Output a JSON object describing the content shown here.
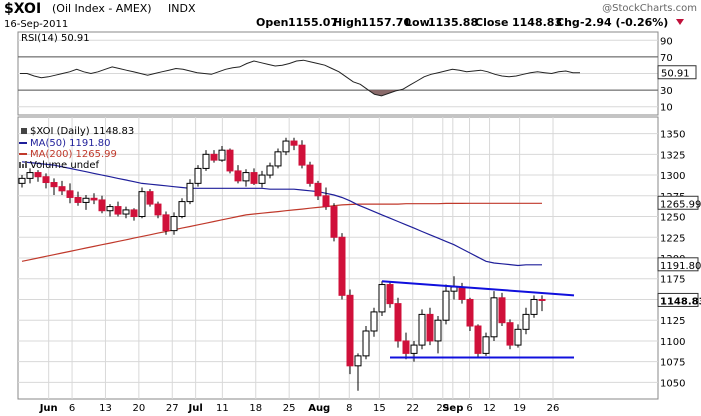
{
  "header": {
    "symbol": "$XOI",
    "name": "(Oil Index - AMEX)",
    "exchange": "INDX",
    "watermark": "@StockCharts.com",
    "date": "16-Sep-2011",
    "open_label": "Open",
    "open": "1155.07",
    "high_label": "High",
    "high": "1157.70",
    "low_label": "Low",
    "low": "1135.88",
    "close_label": "Close",
    "close": "1148.83",
    "chg_label": "Chg",
    "chg": "-2.94 (-0.26%)"
  },
  "colors": {
    "up": "#ffffff",
    "down": "#d0103a",
    "candle_outline": "#000000",
    "ma50": "#1f1f9a",
    "ma200": "#c0392b",
    "trendline": "#1010dd",
    "rsi_line": "#222222",
    "rsi_fill": "#8a6a6a",
    "grid": "#d8d8d8"
  },
  "chart_data": [
    {
      "type": "line",
      "title": "RSI(14) 50.91",
      "y_ticks": [
        "90",
        "70",
        "50",
        "30",
        "10"
      ],
      "ylim": [
        0,
        100
      ],
      "current_value": 50.91,
      "current_label": "50.91",
      "reference_lines": [
        70,
        30
      ],
      "series": [
        {
          "name": "RSI(14)",
          "values": [
            50,
            50,
            47,
            45,
            46,
            48,
            50,
            52,
            55,
            52,
            50,
            52,
            55,
            58,
            56,
            54,
            52,
            50,
            48,
            50,
            52,
            54,
            56,
            55,
            53,
            51,
            50,
            49,
            52,
            55,
            57,
            58,
            62,
            65,
            63,
            61,
            59,
            60,
            62,
            65,
            66,
            64,
            62,
            60,
            56,
            52,
            46,
            40,
            37,
            31,
            25,
            23,
            26,
            29,
            31,
            36,
            41,
            46,
            49,
            51,
            53,
            55,
            54,
            52,
            53,
            54,
            52,
            49,
            47,
            46,
            47,
            49,
            51,
            52,
            51,
            50,
            52,
            53,
            51,
            50.91
          ]
        }
      ]
    },
    {
      "type": "candlestick",
      "title": "$XOI (Daily) 1148.83",
      "y_ticks": [
        "1350",
        "1325",
        "1300",
        "1275",
        "1250",
        "1225",
        "1200",
        "1175",
        "1150",
        "1125",
        "1100",
        "1075",
        "1050"
      ],
      "ylim": [
        1030,
        1370
      ],
      "x_tick_labels": [
        "Jun",
        "6",
        "13",
        "20",
        "27",
        "Jul",
        "11",
        "18",
        "25",
        "Aug",
        "8",
        "15",
        "22",
        "29",
        "Sep",
        "6",
        "12",
        "19",
        "26"
      ],
      "legend": [
        {
          "label": "$XOI (Daily) 1148.83"
        },
        {
          "label": "MA(50) 1191.80"
        },
        {
          "label": "MA(200) 1265.99"
        },
        {
          "label": "Volume undef"
        }
      ],
      "candles": [
        [
          1290,
          1300,
          1285,
          1296
        ],
        [
          1296,
          1308,
          1290,
          1303
        ],
        [
          1303,
          1306,
          1292,
          1298
        ],
        [
          1298,
          1302,
          1284,
          1291
        ],
        [
          1291,
          1296,
          1276,
          1286
        ],
        [
          1286,
          1293,
          1276,
          1281
        ],
        [
          1281,
          1290,
          1266,
          1273
        ],
        [
          1273,
          1280,
          1263,
          1267
        ],
        [
          1267,
          1276,
          1258,
          1272
        ],
        [
          1272,
          1278,
          1265,
          1270
        ],
        [
          1270,
          1275,
          1254,
          1257
        ],
        [
          1257,
          1265,
          1250,
          1262
        ],
        [
          1262,
          1268,
          1250,
          1253
        ],
        [
          1253,
          1262,
          1248,
          1258
        ],
        [
          1258,
          1260,
          1245,
          1250
        ],
        [
          1250,
          1285,
          1248,
          1280
        ],
        [
          1280,
          1283,
          1262,
          1265
        ],
        [
          1265,
          1268,
          1248,
          1252
        ],
        [
          1252,
          1256,
          1228,
          1233
        ],
        [
          1233,
          1255,
          1228,
          1250
        ],
        [
          1250,
          1272,
          1248,
          1268
        ],
        [
          1268,
          1295,
          1265,
          1290
        ],
        [
          1290,
          1312,
          1286,
          1308
        ],
        [
          1308,
          1330,
          1305,
          1325
        ],
        [
          1325,
          1330,
          1315,
          1318
        ],
        [
          1318,
          1335,
          1316,
          1330
        ],
        [
          1330,
          1332,
          1302,
          1305
        ],
        [
          1305,
          1312,
          1290,
          1293
        ],
        [
          1293,
          1307,
          1286,
          1303
        ],
        [
          1303,
          1308,
          1288,
          1290
        ],
        [
          1290,
          1305,
          1285,
          1300
        ],
        [
          1300,
          1315,
          1296,
          1311
        ],
        [
          1311,
          1332,
          1308,
          1328
        ],
        [
          1328,
          1345,
          1324,
          1341
        ],
        [
          1341,
          1345,
          1330,
          1336
        ],
        [
          1336,
          1342,
          1308,
          1312
        ],
        [
          1312,
          1316,
          1286,
          1290
        ],
        [
          1290,
          1293,
          1270,
          1275
        ],
        [
          1275,
          1285,
          1258,
          1262
        ],
        [
          1262,
          1266,
          1220,
          1225
        ],
        [
          1225,
          1230,
          1150,
          1155
        ],
        [
          1155,
          1162,
          1060,
          1070
        ],
        [
          1070,
          1085,
          1040,
          1082
        ],
        [
          1082,
          1118,
          1078,
          1112
        ],
        [
          1112,
          1140,
          1105,
          1135
        ],
        [
          1135,
          1172,
          1130,
          1168
        ],
        [
          1168,
          1172,
          1140,
          1145
        ],
        [
          1145,
          1152,
          1092,
          1100
        ],
        [
          1100,
          1110,
          1078,
          1085
        ],
        [
          1085,
          1100,
          1075,
          1095
        ],
        [
          1095,
          1138,
          1090,
          1132
        ],
        [
          1132,
          1140,
          1095,
          1100
        ],
        [
          1100,
          1130,
          1085,
          1125
        ],
        [
          1125,
          1168,
          1120,
          1160
        ],
        [
          1160,
          1178,
          1150,
          1165
        ],
        [
          1165,
          1170,
          1145,
          1150
        ],
        [
          1150,
          1152,
          1112,
          1118
        ],
        [
          1118,
          1120,
          1080,
          1085
        ],
        [
          1085,
          1110,
          1082,
          1105
        ],
        [
          1105,
          1160,
          1100,
          1152
        ],
        [
          1152,
          1158,
          1118,
          1122
        ],
        [
          1122,
          1126,
          1090,
          1095
        ],
        [
          1095,
          1120,
          1092,
          1114
        ],
        [
          1114,
          1140,
          1108,
          1132
        ],
        [
          1132,
          1155,
          1128,
          1150
        ],
        [
          1150,
          1155,
          1136,
          1149
        ]
      ],
      "ma50": [
        1316,
        1315,
        1314,
        1313,
        1312,
        1310,
        1308,
        1306,
        1304,
        1302,
        1300,
        1298,
        1296,
        1294,
        1292,
        1290,
        1289,
        1288,
        1287,
        1286,
        1285,
        1284,
        1284,
        1284,
        1284,
        1284,
        1284,
        1284,
        1284,
        1284,
        1284,
        1283,
        1283,
        1283,
        1283,
        1282,
        1281,
        1280,
        1278,
        1276,
        1273,
        1269,
        1264,
        1260,
        1256,
        1252,
        1248,
        1244,
        1240,
        1236,
        1232,
        1228,
        1224,
        1220,
        1216,
        1211,
        1206,
        1201,
        1196,
        1194,
        1193,
        1192,
        1191,
        1191.8,
        1191.8,
        1191.8
      ],
      "ma200": [
        1196,
        1198,
        1200,
        1202,
        1204,
        1206,
        1208,
        1210,
        1212,
        1214,
        1216,
        1218,
        1220,
        1222,
        1224,
        1226,
        1228,
        1230,
        1232,
        1234,
        1236,
        1238,
        1240,
        1242,
        1244,
        1246,
        1248,
        1250,
        1252,
        1253,
        1254,
        1255,
        1256,
        1257,
        1258,
        1259,
        1260,
        1261,
        1262,
        1263,
        1264,
        1264.5,
        1265,
        1265,
        1265,
        1265,
        1265,
        1265,
        1265.5,
        1265.5,
        1265.5,
        1265.5,
        1265.5,
        1265.8,
        1265.8,
        1265.8,
        1265.9,
        1265.9,
        1265.9,
        1265.99,
        1265.99,
        1265.99,
        1265.99,
        1265.99,
        1265.99,
        1265.99
      ],
      "trendlines": [
        {
          "name": "resistance",
          "from": [
            45,
            1172
          ],
          "to": [
            69,
            1155
          ]
        },
        {
          "name": "support",
          "from": [
            46,
            1080
          ],
          "to": [
            69,
            1080
          ]
        }
      ],
      "price_labels": [
        {
          "label": "1265.99",
          "value": 1265.99
        },
        {
          "label": "1191.80",
          "value": 1191.8
        },
        {
          "label": "1148.83",
          "value": 1148.83
        }
      ]
    }
  ]
}
